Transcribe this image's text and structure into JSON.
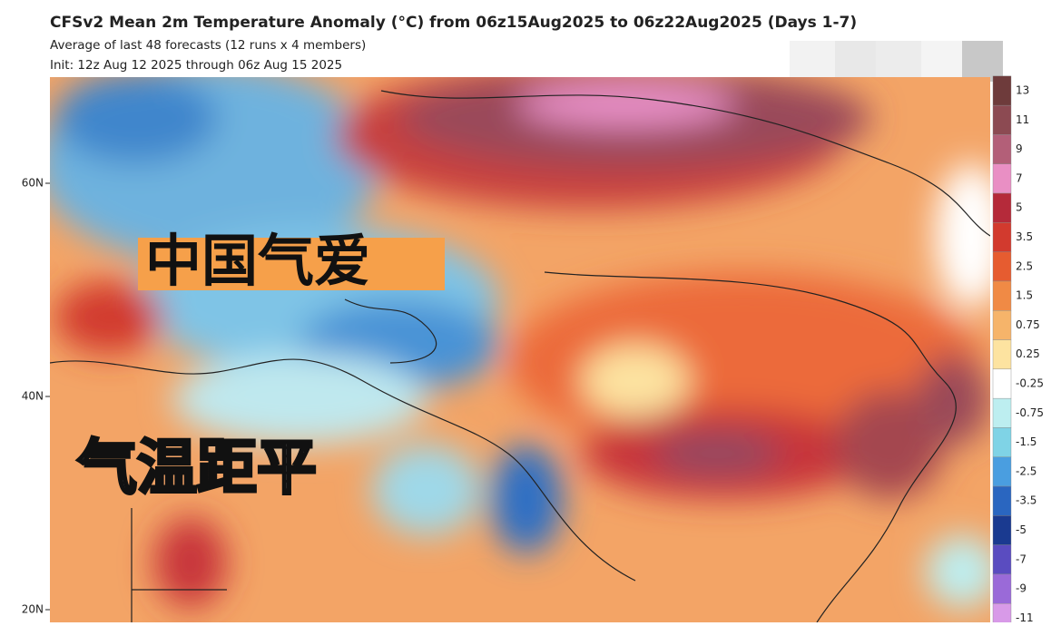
{
  "header": {
    "title": "CFSv2 Mean 2m Temperature Anomaly (°C) from 06z15Aug2025 to 06z22Aug2025 (Days 1-7)",
    "subtitle": "Average of last 48 forecasts (12 runs x 4 members)",
    "init": "Init: 12z Aug 12 2025 through 06z Aug 15 2025"
  },
  "latitude_labels": [
    "60N",
    "40N",
    "20N"
  ],
  "overlay": {
    "label_1": "中国气爱",
    "label_2": "气温距平"
  },
  "colorbar": {
    "levels": [
      13,
      11,
      9,
      7,
      5,
      3.5,
      2.5,
      1.5,
      0.75,
      0.25,
      -0.25,
      -0.75,
      -1.5,
      -2.5,
      -3.5,
      -5,
      -7,
      -9,
      -11
    ],
    "colors": [
      "#6e3b3b",
      "#8c4a52",
      "#b35f78",
      "#e98fc4",
      "#b52a3a",
      "#d23a2e",
      "#e65c30",
      "#f08a45",
      "#f6b46a",
      "#fde3a0",
      "#ffffff",
      "#bdeef0",
      "#7fd3e6",
      "#4a9ee0",
      "#2a66c0",
      "#1a3a90",
      "#5a4cc0",
      "#9a6ad8",
      "#d89ae8"
    ]
  }
}
